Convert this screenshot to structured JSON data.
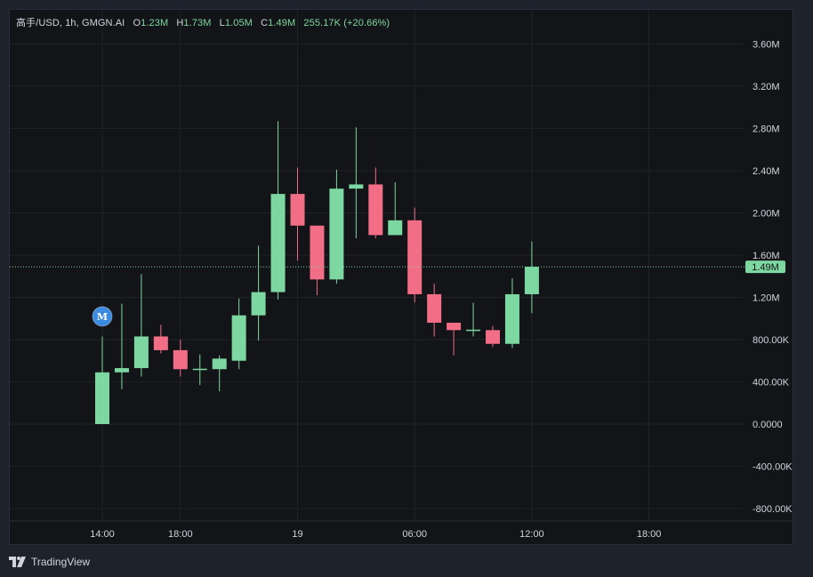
{
  "legend": {
    "symbol": "高手/USD",
    "interval": "1h",
    "source": "GMGN.AI",
    "open_label": "O",
    "open": "1.23M",
    "high_label": "H",
    "high": "1.73M",
    "low_label": "L",
    "low": "1.05M",
    "close_label": "C",
    "close": "1.49M",
    "change": "255.17K",
    "change_pct": "(+20.66%)"
  },
  "footer": {
    "brand": "TradingView",
    "logo_icon": "tradingview-logo-icon"
  },
  "colors": {
    "up": "#7dd7a0",
    "down": "#f26d86",
    "grid": "#1f2229",
    "background": "#131417",
    "marker": "#3a8ae0"
  },
  "chart_data": {
    "type": "candlestick",
    "ylim": [
      -900000,
      3800000
    ],
    "y_ticks": [
      {
        "value": 3600000,
        "label": "3.60M"
      },
      {
        "value": 3200000,
        "label": "3.20M"
      },
      {
        "value": 2800000,
        "label": "2.80M"
      },
      {
        "value": 2400000,
        "label": "2.40M"
      },
      {
        "value": 2000000,
        "label": "2.00M"
      },
      {
        "value": 1600000,
        "label": "1.60M"
      },
      {
        "value": 1200000,
        "label": "1.20M"
      },
      {
        "value": 800000,
        "label": "800.00K"
      },
      {
        "value": 400000,
        "label": "400.00K"
      },
      {
        "value": 0,
        "label": "0.0000"
      },
      {
        "value": -400000,
        "label": "-400.00K"
      },
      {
        "value": -800000,
        "label": "-800.00K"
      }
    ],
    "x_ticks": [
      {
        "index": 0,
        "label": "14:00"
      },
      {
        "index": 4,
        "label": "18:00"
      },
      {
        "index": 10,
        "label": "19"
      },
      {
        "index": 16,
        "label": "06:00"
      },
      {
        "index": 22,
        "label": "12:00"
      },
      {
        "index": 28,
        "label": "18:00"
      }
    ],
    "candles": [
      {
        "i": 0,
        "o": 0,
        "h": 830000,
        "l": 0,
        "c": 490000
      },
      {
        "i": 1,
        "o": 490000,
        "h": 1140000,
        "l": 330000,
        "c": 530000
      },
      {
        "i": 2,
        "o": 530000,
        "h": 1420000,
        "l": 450000,
        "c": 830000
      },
      {
        "i": 3,
        "o": 830000,
        "h": 940000,
        "l": 670000,
        "c": 700000
      },
      {
        "i": 4,
        "o": 700000,
        "h": 800000,
        "l": 450000,
        "c": 520000
      },
      {
        "i": 5,
        "o": 520000,
        "h": 660000,
        "l": 370000,
        "c": 520000
      },
      {
        "i": 6,
        "o": 520000,
        "h": 650000,
        "l": 310000,
        "c": 620000
      },
      {
        "i": 7,
        "o": 600000,
        "h": 1190000,
        "l": 520000,
        "c": 1030000
      },
      {
        "i": 8,
        "o": 1030000,
        "h": 1690000,
        "l": 790000,
        "c": 1250000
      },
      {
        "i": 9,
        "o": 1250000,
        "h": 2870000,
        "l": 1180000,
        "c": 2180000
      },
      {
        "i": 10,
        "o": 2180000,
        "h": 2430000,
        "l": 1550000,
        "c": 1880000
      },
      {
        "i": 11,
        "o": 1880000,
        "h": 1880000,
        "l": 1220000,
        "c": 1370000
      },
      {
        "i": 12,
        "o": 1370000,
        "h": 2410000,
        "l": 1330000,
        "c": 2230000
      },
      {
        "i": 13,
        "o": 2230000,
        "h": 2810000,
        "l": 1760000,
        "c": 2270000
      },
      {
        "i": 14,
        "o": 2270000,
        "h": 2430000,
        "l": 1760000,
        "c": 1790000
      },
      {
        "i": 15,
        "o": 1790000,
        "h": 2290000,
        "l": 1790000,
        "c": 1930000
      },
      {
        "i": 16,
        "o": 1930000,
        "h": 2050000,
        "l": 1150000,
        "c": 1230000
      },
      {
        "i": 17,
        "o": 1230000,
        "h": 1330000,
        "l": 830000,
        "c": 960000
      },
      {
        "i": 18,
        "o": 960000,
        "h": 960000,
        "l": 650000,
        "c": 890000
      },
      {
        "i": 19,
        "o": 890000,
        "h": 1150000,
        "l": 830000,
        "c": 890000
      },
      {
        "i": 20,
        "o": 890000,
        "h": 930000,
        "l": 730000,
        "c": 760000
      },
      {
        "i": 21,
        "o": 760000,
        "h": 1380000,
        "l": 720000,
        "c": 1230000
      },
      {
        "i": 22,
        "o": 1230000,
        "h": 1730000,
        "l": 1050000,
        "c": 1490000
      }
    ],
    "last_price": {
      "value": 1490000,
      "label": "1.49M"
    },
    "marker": {
      "index": 0,
      "value": 1020000,
      "label": "M"
    }
  }
}
